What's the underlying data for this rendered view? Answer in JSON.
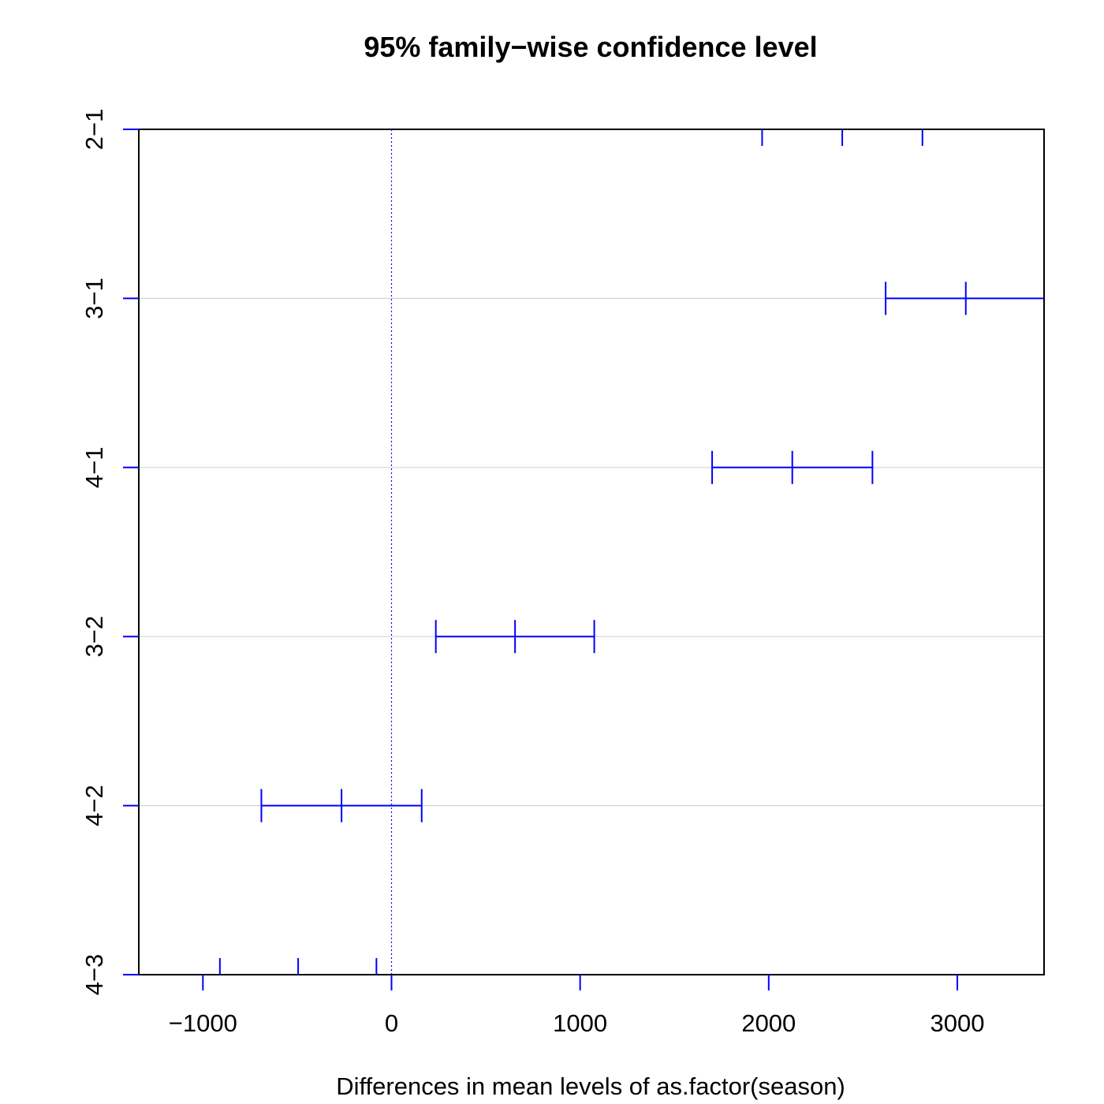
{
  "chart_data": {
    "type": "interval",
    "title": "95% family−wise confidence level",
    "xlabel": "Differences in mean levels of as.factor(season)",
    "ylabel": "",
    "xlim": [
      -1340,
      3460
    ],
    "x_ticks": [
      -1000,
      0,
      1000,
      2000,
      3000
    ],
    "x_tick_labels": [
      "−1000",
      "0",
      "1000",
      "2000",
      "3000"
    ],
    "categories": [
      "2−1",
      "3−1",
      "4−1",
      "3−2",
      "4−2",
      "4−3"
    ],
    "estimates": [
      {
        "label": "2−1",
        "lwr": 1965,
        "diff": 2390,
        "upr": 2815
      },
      {
        "label": "3−1",
        "lwr": 2620,
        "diff": 3045,
        "upr": 3470
      },
      {
        "label": "4−1",
        "lwr": 1700,
        "diff": 2125,
        "upr": 2550
      },
      {
        "label": "3−2",
        "lwr": 235,
        "diff": 655,
        "upr": 1075
      },
      {
        "label": "4−2",
        "lwr": -690,
        "diff": -265,
        "upr": 160
      },
      {
        "label": "4−3",
        "lwr": -910,
        "diff": -495,
        "upr": -80
      }
    ],
    "reference_line": 0,
    "grid": "horizontal",
    "colors": {
      "interval": "#0000ff",
      "grid": "#d3d3d3",
      "reference": "#0000ff",
      "axis": "#000000"
    }
  }
}
